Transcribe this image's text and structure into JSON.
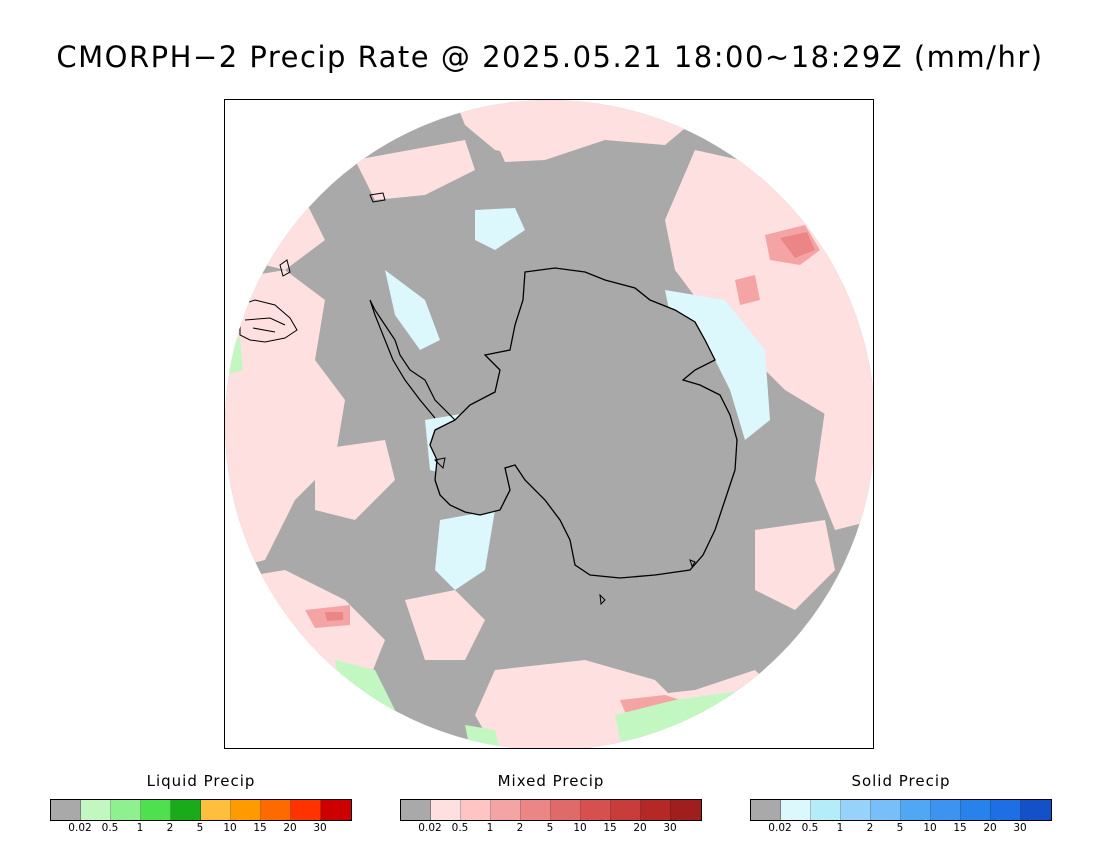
{
  "title": "CMORPH−2 Precip Rate @ 2025.05.21 18:00~18:29Z (mm/hr)",
  "colors": {
    "ocean_no_precip": "#a9a9a9",
    "light_mixed": "#ffe0e0",
    "light_solid": "#dcf8fc",
    "coastline": "#000000"
  },
  "legends": [
    {
      "id": "liquid",
      "title": "Liquid Precip",
      "swatches": [
        "#a9a9a9",
        "#c2f7c2",
        "#8ef08e",
        "#4fe04f",
        "#1aab1a",
        "#ffbe3c",
        "#ff9a00",
        "#ff6a00",
        "#ff3200",
        "#cc0000"
      ],
      "ticks": [
        "0.02",
        "0.5",
        "1",
        "2",
        "5",
        "10",
        "15",
        "20",
        "30"
      ]
    },
    {
      "id": "mixed",
      "title": "Mixed Precip",
      "swatches": [
        "#a9a9a9",
        "#ffe0e0",
        "#ffc4c4",
        "#f4a4a4",
        "#ec8686",
        "#e06a6a",
        "#d65050",
        "#c83c3c",
        "#b42828",
        "#a01e1e"
      ],
      "ticks": [
        "0.02",
        "0.5",
        "1",
        "2",
        "5",
        "10",
        "15",
        "20",
        "30"
      ]
    },
    {
      "id": "solid",
      "title": "Solid Precip",
      "swatches": [
        "#a9a9a9",
        "#dcf8fc",
        "#b4ecfa",
        "#96d2fa",
        "#78bef8",
        "#50a8f4",
        "#3c94f0",
        "#2882ec",
        "#1e6ee6",
        "#1450c8"
      ],
      "ticks": [
        "0.02",
        "0.5",
        "1",
        "2",
        "5",
        "10",
        "15",
        "20",
        "30"
      ]
    }
  ]
}
